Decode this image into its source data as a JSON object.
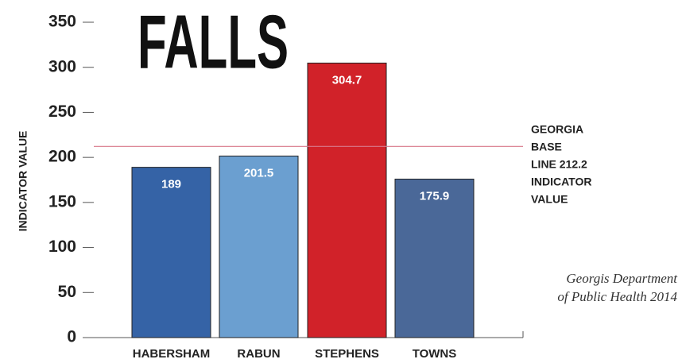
{
  "chart_data": {
    "type": "bar",
    "title": "FALLS",
    "y_label": "INDICATOR VALUE",
    "categories": [
      "HABERSHAM",
      "RABUN",
      "STEPHENS",
      "TOWNS"
    ],
    "values": [
      189,
      201.5,
      304.7,
      175.9
    ],
    "colors": [
      "#3563a6",
      "#6b9fd0",
      "#d12229",
      "#4a6898"
    ],
    "ylim": [
      0,
      350
    ],
    "yticks": [
      0,
      50,
      100,
      150,
      200,
      250,
      300,
      350
    ],
    "reference_line": {
      "value": 212.2,
      "color": "#d8788a",
      "label": [
        "GEORGIA",
        "BASE",
        "LINE 212.2",
        "INDICATOR",
        "VALUE"
      ]
    },
    "source": [
      "Georgis Department",
      "of Public Health 2014"
    ]
  }
}
